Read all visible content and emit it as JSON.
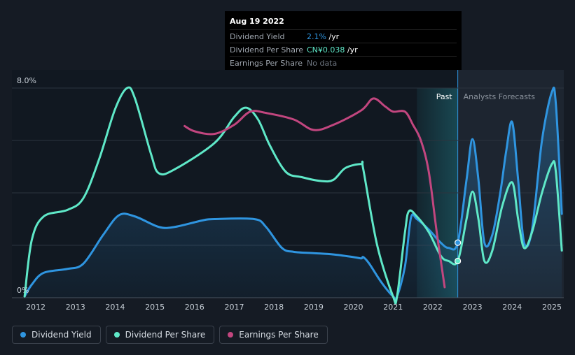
{
  "chart_data": {
    "type": "line",
    "title": "",
    "y_axis": {
      "min": 0,
      "max": 8,
      "labels": [
        "8.0%",
        "0%"
      ],
      "label_values": [
        8,
        0
      ],
      "gridlines": [
        0,
        2,
        4,
        6,
        8
      ]
    },
    "x_axis": {
      "min": 2011.4,
      "max": 2025.3,
      "ticks": [
        "2012",
        "2013",
        "2014",
        "2015",
        "2016",
        "2017",
        "2018",
        "2019",
        "2020",
        "2021",
        "2022",
        "2023",
        "2024",
        "2025"
      ],
      "tick_values": [
        2012,
        2013,
        2014,
        2015,
        2016,
        2017,
        2018,
        2019,
        2020,
        2021,
        2022,
        2023,
        2024,
        2025
      ]
    },
    "regions": {
      "past_label": "Past",
      "forecast_label": "Analysts Forecasts",
      "past_start": 2021.6,
      "divider": 2022.63
    },
    "series": [
      {
        "name": "Dividend Yield",
        "color": "#2f95e0",
        "area": true,
        "points": [
          [
            2011.72,
            0.05
          ],
          [
            2011.9,
            0.5
          ],
          [
            2012.2,
            0.95
          ],
          [
            2012.8,
            1.1
          ],
          [
            2013.2,
            1.3
          ],
          [
            2013.7,
            2.4
          ],
          [
            2014.1,
            3.15
          ],
          [
            2014.5,
            3.1
          ],
          [
            2015.1,
            2.7
          ],
          [
            2015.5,
            2.7
          ],
          [
            2016.2,
            2.95
          ],
          [
            2016.5,
            3.0
          ],
          [
            2017.5,
            3.0
          ],
          [
            2017.8,
            2.7
          ],
          [
            2018.2,
            1.9
          ],
          [
            2018.5,
            1.75
          ],
          [
            2019.0,
            1.7
          ],
          [
            2019.5,
            1.65
          ],
          [
            2020.0,
            1.55
          ],
          [
            2020.2,
            1.5
          ],
          [
            2020.25,
            1.55
          ],
          [
            2020.4,
            1.3
          ],
          [
            2020.7,
            0.6
          ],
          [
            2021.0,
            0.05
          ],
          [
            2021.1,
            0.05
          ],
          [
            2021.3,
            1.2
          ],
          [
            2021.45,
            3.05
          ],
          [
            2021.6,
            3.0
          ],
          [
            2021.9,
            2.6
          ],
          [
            2022.2,
            2.1
          ],
          [
            2022.4,
            1.9
          ],
          [
            2022.63,
            2.1
          ],
          [
            2022.85,
            4.5
          ],
          [
            2023.0,
            6.05
          ],
          [
            2023.15,
            4.5
          ],
          [
            2023.3,
            2.1
          ],
          [
            2023.5,
            2.4
          ],
          [
            2023.7,
            4.0
          ],
          [
            2023.85,
            5.6
          ],
          [
            2024.0,
            6.7
          ],
          [
            2024.15,
            4.5
          ],
          [
            2024.3,
            2.1
          ],
          [
            2024.5,
            2.6
          ],
          [
            2024.75,
            6.0
          ],
          [
            2025.0,
            7.85
          ],
          [
            2025.1,
            7.4
          ],
          [
            2025.25,
            3.2
          ]
        ]
      },
      {
        "name": "Dividend Per Share",
        "color": "#5fe8c8",
        "area": false,
        "points": [
          [
            2011.72,
            0.05
          ],
          [
            2011.9,
            2.2
          ],
          [
            2012.2,
            3.1
          ],
          [
            2012.8,
            3.35
          ],
          [
            2013.2,
            3.8
          ],
          [
            2013.6,
            5.3
          ],
          [
            2014.0,
            7.2
          ],
          [
            2014.3,
            8.0
          ],
          [
            2014.5,
            7.6
          ],
          [
            2014.9,
            5.5
          ],
          [
            2015.1,
            4.75
          ],
          [
            2015.5,
            4.9
          ],
          [
            2016.5,
            5.9
          ],
          [
            2017.0,
            6.9
          ],
          [
            2017.3,
            7.25
          ],
          [
            2017.6,
            6.8
          ],
          [
            2017.9,
            5.8
          ],
          [
            2018.3,
            4.8
          ],
          [
            2018.7,
            4.6
          ],
          [
            2019.2,
            4.45
          ],
          [
            2019.5,
            4.5
          ],
          [
            2019.8,
            4.95
          ],
          [
            2020.2,
            5.1
          ],
          [
            2020.25,
            4.9
          ],
          [
            2020.6,
            2.0
          ],
          [
            2021.0,
            0.05
          ],
          [
            2021.1,
            0.05
          ],
          [
            2021.3,
            2.5
          ],
          [
            2021.4,
            3.3
          ],
          [
            2021.6,
            3.1
          ],
          [
            2021.9,
            2.5
          ],
          [
            2022.2,
            1.6
          ],
          [
            2022.4,
            1.4
          ],
          [
            2022.63,
            1.4
          ],
          [
            2022.85,
            3.0
          ],
          [
            2023.0,
            4.05
          ],
          [
            2023.15,
            3.0
          ],
          [
            2023.3,
            1.4
          ],
          [
            2023.5,
            1.8
          ],
          [
            2023.75,
            3.5
          ],
          [
            2024.0,
            4.4
          ],
          [
            2024.15,
            3.0
          ],
          [
            2024.3,
            1.9
          ],
          [
            2024.5,
            2.5
          ],
          [
            2024.75,
            4.0
          ],
          [
            2025.0,
            5.1
          ],
          [
            2025.1,
            4.8
          ],
          [
            2025.25,
            1.8
          ]
        ]
      },
      {
        "name": "Earnings Per Share",
        "color": "#c2467f",
        "area": false,
        "points": [
          [
            2015.75,
            6.55
          ],
          [
            2016.0,
            6.35
          ],
          [
            2016.5,
            6.25
          ],
          [
            2017.0,
            6.6
          ],
          [
            2017.4,
            7.1
          ],
          [
            2017.8,
            7.05
          ],
          [
            2018.5,
            6.8
          ],
          [
            2019.0,
            6.4
          ],
          [
            2019.5,
            6.6
          ],
          [
            2020.2,
            7.15
          ],
          [
            2020.5,
            7.6
          ],
          [
            2020.8,
            7.3
          ],
          [
            2021.0,
            7.1
          ],
          [
            2021.3,
            7.1
          ],
          [
            2021.5,
            6.6
          ],
          [
            2021.7,
            6.0
          ],
          [
            2021.9,
            4.8
          ],
          [
            2022.1,
            2.5
          ],
          [
            2022.3,
            0.4
          ]
        ]
      }
    ],
    "markers": [
      {
        "series": "Dividend Yield",
        "x": 2022.63,
        "y": 2.1
      },
      {
        "series": "Dividend Per Share",
        "x": 2022.63,
        "y": 1.4
      }
    ]
  },
  "tooltip": {
    "date": "Aug 19 2022",
    "rows": [
      {
        "label": "Dividend Yield",
        "value": "2.1%",
        "suffix": " /yr",
        "color": "#2f95e0"
      },
      {
        "label": "Dividend Per Share",
        "value": "CN¥0.038",
        "suffix": " /yr",
        "color": "#5fe8c8"
      },
      {
        "label": "Earnings Per Share",
        "value": "No data",
        "suffix": "",
        "color": "#6e7681"
      }
    ]
  },
  "legend": [
    {
      "label": "Dividend Yield",
      "color": "#2f95e0"
    },
    {
      "label": "Dividend Per Share",
      "color": "#5fe8c8"
    },
    {
      "label": "Earnings Per Share",
      "color": "#c2467f"
    }
  ]
}
